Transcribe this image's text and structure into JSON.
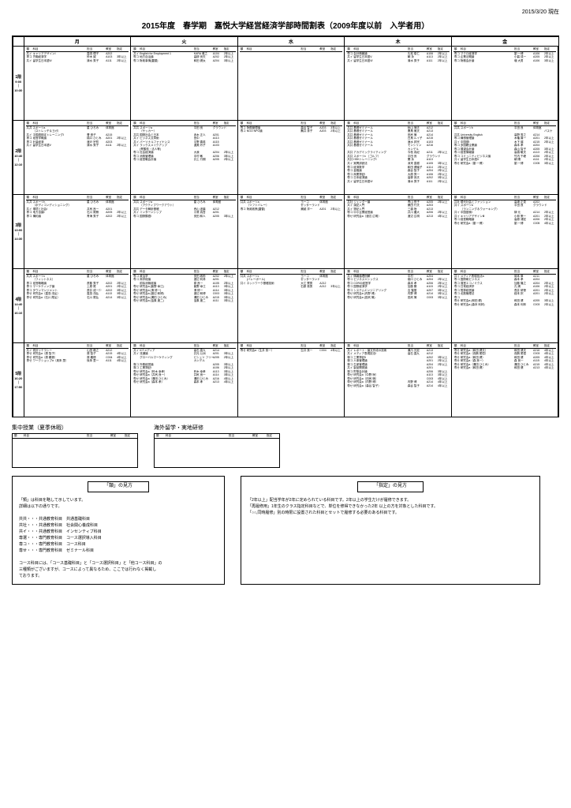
{
  "meta": {
    "date": "2015/3/20 現在"
  },
  "title": "2015年度　春学期　嘉悦大学経営経済学部時間割表（2009年度以前　入学者用）",
  "days": [
    "月",
    "火",
    "水",
    "木",
    "金"
  ],
  "periods": [
    {
      "num": "1限",
      "start": "9:00",
      "end": "10:30"
    },
    {
      "num": "2限",
      "start": "10:40",
      "end": "12:10"
    },
    {
      "num": "3限",
      "start": "13:00",
      "end": "14:30"
    },
    {
      "num": "4限",
      "start": "14:40",
      "end": "16:10"
    },
    {
      "num": "5限",
      "start": "16:20",
      "end": "17:50"
    }
  ],
  "colheader": {
    "c1": "類",
    "c2": "科目",
    "c3": "担当",
    "c4": "教室",
    "c5": "指定"
  },
  "grid": {
    "p0": {
      "d0": [
        [
          "共イ",
          "キャリアデザインⅠ",
          "嘉悦 理子",
          "A202",
          ""
        ],
        [
          "専コ",
          "労働経済学",
          "鈴木 誠",
          "A103",
          "3年以上"
        ],
        [
          "共イ",
          "留学生日本語Ⅳ",
          "清水 秀子",
          "A111",
          "2年以上"
        ]
      ],
      "d1": [
        [
          "共イ",
          "English for Employment 1",
          "KARA 雅之",
          "A104",
          "2年以上"
        ],
        [
          "専コ",
          "地方自治論",
          "高柳 良夫",
          "A202",
          "2年以上"
        ],
        [
          "専コ",
          "財政事情(蓋替)",
          "和田 健太",
          "A204",
          "3年以上"
        ]
      ],
      "d2": [],
      "d3": [
        [
          "専コ",
          "会計情報論",
          "久松 俊仁",
          "A106",
          "2年以上"
        ],
        [
          "共イ",
          "留学生日本語Ⅴ",
          "朝 永",
          "A113",
          "2年以上"
        ],
        [
          "共イ",
          "留学生日本語Ⅵ",
          "清水 秀子",
          "A111",
          "2年以上"
        ]
      ],
      "d4": [
        [
          "専コ",
          "マクロ経済学",
          "劉 一博",
          "A106",
          "2年以上"
        ],
        [
          "専コ",
          "企業法概論",
          "小暮 成一",
          "A205",
          "2年以上"
        ],
        [
          "専コ",
          "財務会計論",
          "増 大男",
          "A106",
          "3年以上"
        ]
      ]
    },
    "p1": {
      "d0": [
        [
          "共共",
          "スポーツa\n（ストレッチ＆ヨガ）",
          "星 ひろみ",
          "体育館",
          ""
        ],
        [
          "共イ",
          "中国語検定トレーニングⅠ",
          "曹 崇子",
          "A215",
          ""
        ],
        [
          "専コ",
          "経営学概論",
          "橋口 ひとみ",
          "A201",
          "2年以上"
        ],
        [
          "専コ",
          "計量経済",
          "渡戸 宗哲",
          "A203",
          ""
        ],
        [
          "共イ",
          "留学生日本語Ⅴ",
          "清水 秀子",
          "A111",
          "2年以上"
        ]
      ],
      "d1": [
        [
          "共共",
          "スポーツa\n（サッカー）",
          "平田 良",
          "グラウンド",
          ""
        ],
        [
          "共共",
          "国際社会と日本",
          "赤木 正人",
          "A201",
          ""
        ],
        [
          "共イ",
          "ビジネス文章術",
          "田中",
          "A113",
          ""
        ],
        [
          "共イ",
          "パーソナルファイナンス",
          "平野 喜英",
          "A115",
          ""
        ],
        [
          "共イ",
          "ラックスメイクアップ\n(青酸枝・法人等)",
          "渥美 玲子",
          "A103",
          ""
        ],
        [
          "",
          "",
          "",
          "",
          ""
        ],
        [
          "専コ",
          "社会経済論",
          "大我",
          "A204",
          "2年以上"
        ],
        [
          "専コ",
          "消費管理論",
          "中村 敏",
          "A206",
          "3年以上"
        ],
        [
          "専コ",
          "経営戦会計論",
          "井上 行期",
          "A205",
          "2年以上"
        ]
      ],
      "d2": [
        [
          "専コ",
          "財務管理論",
          "森谷 智子",
          "A203",
          "3年以上"
        ],
        [
          "専コ",
          "NGO NPO論",
          "鷹井 排子",
          "A203",
          "2年以上"
        ]
      ],
      "d3": [
        [
          "共共",
          "基礎ゼミナール",
          "秋山 律夫",
          "A212",
          ""
        ],
        [
          "共共",
          "基礎ゼミナール",
          "妻鳥 雅夫",
          "A213",
          ""
        ],
        [
          "共共",
          "基礎ゼミナール",
          "田尻 愼",
          "A214",
          ""
        ],
        [
          "共共",
          "基礎ゼミナール",
          "白鳥 ルイ子",
          "A215",
          ""
        ],
        [
          "共共",
          "基礎ゼミナール",
          "速水 邦宗",
          "A103",
          ""
        ],
        [
          "共共",
          "基礎ゼミナール",
          "モンシリン\nカンデル",
          "A216",
          ""
        ],
        [
          "共共",
          "アカデミックライティング",
          "今枝 真紀",
          "A211",
          "2年以上"
        ],
        [
          "共共",
          "スポーツc （ゴルフ）",
          "平田 良",
          "グラウンド",
          ""
        ],
        [
          "共共",
          "HSKトレーニングⅠ",
          "関 永",
          "A113",
          ""
        ],
        [
          "共イ",
          "実問訓読法",
          "深来 直樹",
          "A105",
          "3年以上"
        ],
        [
          "専コ",
          "経済数学",
          "和田 健議子",
          "A114",
          "2年以上"
        ],
        [
          "専コ",
          "金融論",
          "森谷 智子",
          "A204",
          "2年以上"
        ],
        [
          "専コ",
          "商業簿記Ⅰ",
          "大原 秀一",
          "A106",
          "2年以上"
        ],
        [
          "専コ",
          "日本経済論",
          "高柳 良夫",
          "A202",
          "3年以上"
        ],
        [
          "共イ",
          "留学生日本語Ⅵ",
          "清水 秀子",
          "A111",
          "2年以上"
        ]
      ],
      "d4": [
        [
          "共共",
          "スポーツb",
          "平田 良",
          "体育館",
          ""
        ],
        [
          "",
          "",
          "",
          "",
          "バスケ"
        ],
        [
          "共共",
          "University English",
          "高野 秀之",
          "A214",
          ""
        ],
        [
          "専コ",
          "構想管理論",
          "木幡 喜一",
          "A201",
          "2年以上"
        ],
        [
          "共イ",
          "中国語Ⅰ",
          "木下 讓",
          "A215",
          "2年以上"
        ],
        [
          "専コ",
          "多国籍企業論",
          "森本 孝",
          "A204",
          ""
        ],
        [
          "専コ",
          "展望会計論",
          "森山 智子",
          "A205",
          "3年以上"
        ],
        [
          "専コ",
          "経営情報論",
          "高橋 敏夫",
          "A113",
          "2年以上"
        ],
        [
          "専コ",
          "コミュニティビジネス論",
          "竹内 千峰",
          "A206",
          "2年以上"
        ],
        [
          "共イ",
          "留学生日本語Ⅴ",
          "朝 陽",
          "A111",
          "2年以上"
        ],
        [
          "専せ",
          "研究会a（劉 一博）",
          "劉 一博",
          "C005",
          "3年以上"
        ]
      ]
    },
    "p2": {
      "d0": [
        [
          "共共",
          "スポーツh\n（ボディコンディショニング）",
          "星 ひろみ",
          "体育館",
          ""
        ],
        [
          "共イ",
          "環境と社会Ⅰ",
          "井尻 良一",
          "A201",
          ""
        ],
        [
          "専コ",
          "地方自論Ⅰ",
          "石川 尾積",
          "A205",
          "2年以上"
        ],
        [
          "専コ",
          "構約論",
          "青海 秀子",
          "A202",
          "2年以上"
        ]
      ],
      "d1": [
        [
          "共共",
          "スポーツa\n（アクティブワークアウト）",
          "星 ひろみ",
          "体育館",
          ""
        ],
        [
          "共共",
          "データ解析基礎",
          "西山 波葉",
          "A212",
          ""
        ],
        [
          "共イ",
          "インターンシップ",
          "小鷲 真吾",
          "A201",
          ""
        ],
        [
          "専コ",
          "国際醇語Ⅰ",
          "安田 和人",
          "A205",
          "3年以上"
        ]
      ],
      "d2": [
        [
          "共共",
          "スポーツa\n（ソフトバレー）",
          "ヨーコ\nゼッターランド",
          "体育館",
          ""
        ],
        [
          "専コ",
          "財政政策(蓋替)",
          "瀬誠 洋一",
          "A201",
          "2年以上"
        ]
      ],
      "d3": [
        [
          "共社",
          "ジェンダー論",
          "青山 悦子",
          "A205",
          "2年以上"
        ],
        [
          "共イ",
          "漢記入門",
          "桑田 行夫",
          "A203",
          ""
        ],
        [
          "共イ",
          "簿記入門",
          "三橋 咲",
          "A213",
          ""
        ],
        [
          "専コ",
          "中小企業経営論",
          "井川 農大",
          "A206",
          "2年以上"
        ],
        [
          "専せ",
          "研究会a（渡辺 広明）",
          "渡辺 広明",
          "A213",
          "4年以上"
        ]
      ],
      "d4": [
        [
          "共社",
          "現代社会とファッション",
          "高畑 正見",
          "A202",
          ""
        ],
        [
          "共イ",
          "スポーツa\n（ランニング＆ウォーキング）",
          "平田 良",
          "グラウンド",
          ""
        ],
        [
          "共イ",
          "中国語検Ⅰ",
          "榊 元",
          "A214",
          "2年以上"
        ],
        [
          "共イ",
          "キャリアデザインⅢ",
          "小林 策一",
          "A201",
          "2年以上"
        ],
        [
          "専コ",
          "経営戦略論",
          "高原 浦宏",
          "A206",
          "2年以上"
        ],
        [
          "専せ",
          "研究会a（劉 一博）",
          "劉 一博",
          "C005",
          "4年以上"
        ]
      ]
    },
    "p3": {
      "d0": [
        [
          "共共",
          "スポーツc\n（フィットネス）",
          "星 ひろみ",
          "体育館",
          ""
        ],
        [
          "専コ",
          "経営戦略論",
          "斎藤 秀子",
          "A202",
          "2年以上"
        ],
        [
          "専コ",
          "マーケティング論",
          "上原 尾",
          "A201",
          "2年以上"
        ],
        [
          "専コ",
          "タウンマンジメント",
          "斎井 成一少",
          "A202",
          "3年以上"
        ],
        [
          "専せ",
          "研究会a（嘉島 浅弘）",
          "嘉島 浅弘",
          "A113",
          "3年以上"
        ],
        [
          "専せ",
          "研究会a（石川 尾弘）",
          "石川 尾弘",
          "A214",
          "3年以上"
        ]
      ],
      "d1": [
        [
          "専コ",
          "政治学",
          "安田 政粉",
          "A202",
          "2年以上"
        ],
        [
          "専コ",
          "商学総論",
          "渡辺 利林",
          "A201",
          ""
        ],
        [
          "",
          "前除消無経論",
          "原 良一",
          "A105",
          "2年以上"
        ],
        [
          "専せ",
          "研究会a (飯野 幸江)",
          "飯野 幸江",
          "A113",
          "3年以上"
        ],
        [
          "専せ",
          "研究会a (滑 修一)",
          "滑 修一",
          "A114",
          "3年以上"
        ],
        [
          "専せ",
          "研究会a (渡辺 和博)",
          "渡辺 和博",
          "C003",
          "3年以上"
        ],
        [
          "専せ",
          "研究会a (溝田 ひとみ)",
          "溝田 ひとみ",
          "A215",
          "3年以上"
        ],
        [
          "専せ",
          "研究会a (浊象 度二)",
          "浊象 度二",
          "A111",
          "3年以上"
        ]
      ],
      "d2": [
        [
          "共共",
          "スポーツc\n(バレーボール)",
          "ヨーコ\nゼッターランド",
          "体育館",
          ""
        ],
        [
          "共イ",
          "ネットワーク基礎技術",
          "大江 鷺秀",
          "A212",
          ""
        ],
        [
          "",
          "",
          "石原 責男",
          "A212",
          "3年以上"
        ]
      ],
      "d3": [
        [
          "共イ",
          "情報倫理例解",
          "中村",
          "A204",
          ""
        ],
        [
          "専コ",
          "ビジネスエシックス",
          "橋口 ひとみ",
          "A204",
          "2年以上"
        ],
        [
          "専コ",
          "CORの経営学",
          "森本 孝",
          "A206",
          "2年以上"
        ],
        [
          "専コ",
          "国際経済学",
          "加藤 勝",
          "A115",
          "2年以上"
        ],
        [
          "専コ",
          "システムエンジニアリング",
          "吉 聖蘭",
          "A207",
          "3年以上"
        ],
        [
          "専せ",
          "研究会a (内野 博)",
          "内野 博",
          "A214",
          "3年以上"
        ],
        [
          "専せ",
          "研究会a (田尻 愼)",
          "田尻 愼",
          "C003",
          "3年以上"
        ]
      ],
      "d4": [
        [
          "共イ",
          "メディア表現技法a",
          "岡本 厚",
          "A211",
          ""
        ],
        [
          "専コ",
          "国際刷ビジネス",
          "森本 孝",
          "A204",
          ""
        ],
        [
          "専コ",
          "運営エコノミクス",
          "加藤 隆之",
          "A204",
          "2年以上"
        ],
        [
          "専コ",
          "日常経済学",
          "孔 嫣",
          "A106",
          "2年以上"
        ],
        [
          "専コ",
          "簡算経営論",
          "長井 研徳",
          "A201",
          "2年以上"
        ],
        [
          "専コ",
          "北割権理法",
          "経本 択",
          "A201",
          "2年以上"
        ],
        [
          "専コ",
          "",
          "",
          "",
          ""
        ],
        [
          "専せ",
          "研究会a (和田 健)",
          "和田 健",
          "A205",
          "3年以上"
        ],
        [
          "専せ",
          "研究会a (森本 利林)",
          "森本 利林",
          "C003",
          "2年以上"
        ]
      ]
    },
    "p4": {
      "d0": [
        [
          "共イ",
          "統計リテラシー",
          "山田 格之",
          "A212",
          ""
        ],
        [
          "専せ",
          "研究会a（原 智子）",
          "原 智子",
          "A215",
          "4年以上"
        ],
        [
          "専せ",
          "研究会a（原 義徳）",
          "原 義徳",
          "C004",
          "4年以上"
        ],
        [
          "専せ",
          "ワークショップa（奥朱 里）",
          "後朱 里一",
          "A111",
          "4年以上"
        ]
      ],
      "d1": [
        [
          "共イ",
          "ICTメディア",
          "高石 直九",
          "A214",
          ""
        ],
        [
          "共イ",
          "流通論",
          "井元 公洲",
          "A201",
          "3年以上"
        ],
        [
          "",
          "グローバルマーケティング",
          "ビシュソ フリー\nカンデル",
          "A205",
          "2年以上"
        ],
        [
          "專コ",
          "外務経営論",
          "",
          "A205",
          "3年以上"
        ],
        [
          "專コ",
          "工業簿記Ⅰ",
          "",
          "A106",
          "2年以上"
        ],
        [
          "専せ",
          "研究会a（鈴木 幸孝）",
          "鈴木 幸孝",
          "A113",
          "3年以上"
        ],
        [
          "専せ",
          "研究会a（井尻 良一）",
          "井尻 良一",
          "A114",
          "3年以上"
        ],
        [
          "専せ",
          "研究会a（溝田 ひとみ）",
          "溝田 ひとみ",
          "A216",
          "4年以上"
        ],
        [
          "専せ",
          "研究会a（森本 孝）",
          "森本 孝",
          "A213",
          "4年以上"
        ]
      ],
      "d2": [
        [
          "専せ",
          "研究会a（生井 良一）",
          "生井 良一",
          "C004",
          "4年以上"
        ]
      ],
      "d3": [
        [
          "共イ",
          "レポート・論文作成の技術",
          "瀬爪 光宏",
          "A213",
          ""
        ],
        [
          "共イ",
          "メディア表現技法Ⅰ",
          "高石 直九",
          "A212",
          ""
        ],
        [
          "專コ",
          "工業簿記Ⅱ",
          "",
          "A202",
          "3年以上"
        ],
        [
          "專コ",
          "人事管理論",
          "",
          "A201",
          "2年以上"
        ],
        [
          "專コ",
          "生産管理論",
          "",
          "A204",
          "2年以上"
        ],
        [
          "共イ",
          "製品開発論",
          "",
          "A201",
          ""
        ],
        [
          "專コ",
          "貯筋会計論",
          "",
          "A206",
          "3年以上"
        ],
        [
          "専せ",
          "研究会a（中野 咲）",
          "",
          "A113",
          "3年以上"
        ],
        [
          "専せ",
          "研究会a（田尻 愼）",
          "",
          "C003",
          "4年以上"
        ],
        [
          "専せ",
          "研究会a（内野 博）",
          "内野 博",
          "A214",
          "4年以上"
        ],
        [
          "専せ",
          "研究会a（森谷 智子）",
          "森谷 智子",
          "A214",
          "4年以上"
        ]
      ],
      "d4": [
        [
          "専せ",
          "研究会a（和田 健夫）",
          "和田 健夫",
          "A216",
          "4年以上"
        ],
        [
          "専せ",
          "研究会a（真駒 尾憶）",
          "真駒 尾憶",
          "C003",
          "4年以上"
        ],
        [
          "専せ",
          "研究会a（和田 健）",
          "和田 健",
          "A205",
          "4年以上"
        ],
        [
          "専せ",
          "研究会a（森 良一）",
          "森 良一",
          "A115",
          "4年以上"
        ],
        [
          "専せ",
          "研究会a（溝田 ひとみ）",
          "溝田 ひとみ",
          "A215",
          "4年以上"
        ],
        [
          "専せ",
          "研究会a（和田 健）",
          "和田 健",
          "A213",
          "4年以上"
        ]
      ]
    }
  },
  "bottom": {
    "sect1": {
      "title": "集中授業（夏季休暇）",
      "cols": [
        "類",
        "科目",
        "担当",
        "教室",
        "指定"
      ]
    },
    "sect2": {
      "title": "海外留学・実地研修",
      "cols": [
        "類",
        "科目",
        "担当",
        "教室",
        "指定"
      ]
    }
  },
  "notes": {
    "left": {
      "title": "「類」の見方",
      "lines": [
        "「類」は科目を略して示しています。",
        "詳細は以下の通りです。",
        "",
        "共共・・・共通教育科目　共通基礎科目",
        "共社・・・共通教育科目　社会関心養成科目",
        "共イ・・・共通教育科目　インセンティブ科目",
        "専選・・・専門教育科目　コース選択導入科目",
        "専コ・・・専門教育科目　コース科目",
        "専せ・・・専門教育科目　ゼミナール科目",
        "",
        "コース科目には、「コース基礎科目」と「コース選択科目」と「他コース科目」の",
        "三種類がございますが、コースによって異なるため、ここでは行わなく掲載し",
        "ております。"
      ]
    },
    "right": {
      "title": "「指定」の見方",
      "lines": [
        "「2年以上」配当学年が2年に定められている科目です。2年以上の学生だけが履修できます。",
        "「再履修用」1年生のクラス指定科目などで、単位を修得できなかった2年 以上の方を対象とした科目です。",
        "「○○,同時履修」別の時限に設置された科目とセットで履修する必要のある科目です。"
      ]
    }
  }
}
